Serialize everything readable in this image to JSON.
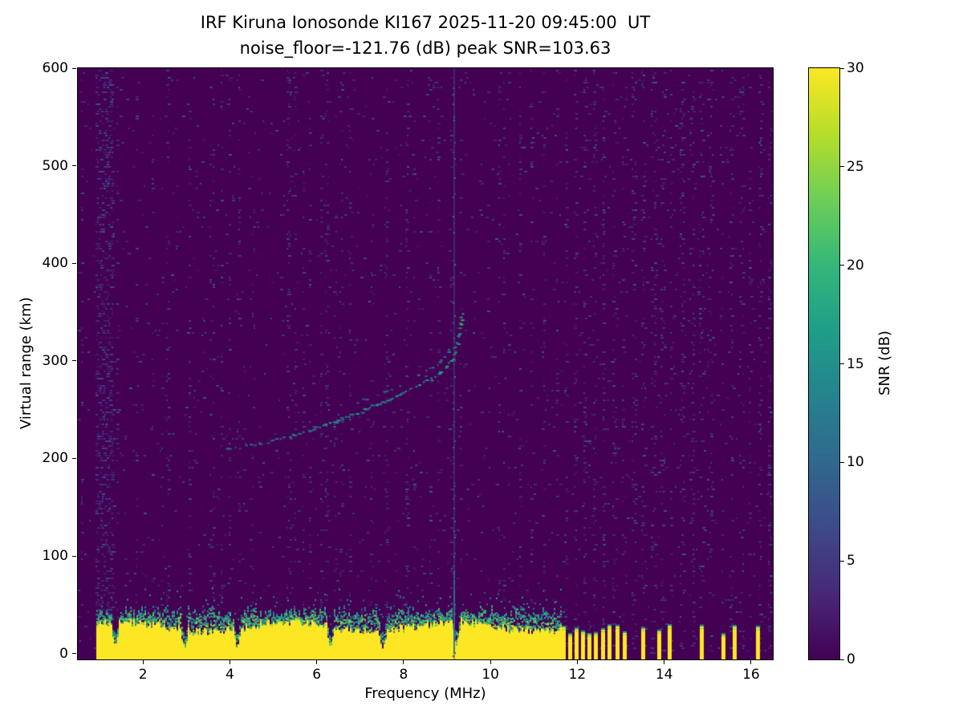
{
  "chart_data": {
    "type": "heatmap",
    "title": "IRF Kiruna Ionosonde KI167 2025-11-20 09:45:00  UT",
    "subtitle": "noise_floor=-121.76 (dB) peak SNR=103.63",
    "xlabel": "Frequency (MHz)",
    "ylabel": "Virtual range (km)",
    "xlim": [
      0.5,
      16.5
    ],
    "ylim": [
      -6,
      600
    ],
    "xticks": [
      2,
      4,
      6,
      8,
      10,
      12,
      14,
      16
    ],
    "yticks": [
      0,
      100,
      200,
      300,
      400,
      500,
      600
    ],
    "grid": false,
    "legend": "none",
    "colorbar": {
      "label": "SNR (dB)",
      "min": 0,
      "max": 30,
      "ticks": [
        0,
        5,
        10,
        15,
        20,
        25,
        30
      ],
      "position": "right",
      "viridis_stops": [
        "#440154",
        "#482878",
        "#3e4a89",
        "#31688e",
        "#26828e",
        "#1f9e89",
        "#35b779",
        "#6ece58",
        "#b5de2b",
        "#fde725"
      ]
    },
    "background_color": "#440154",
    "ground_clutter_band": {
      "freq_start_mhz": 0.92,
      "freq_end_mhz": 11.62,
      "solid_top_km": 28,
      "fringe_top_km": 46,
      "notch_freqs_mhz": [
        1.35,
        2.95,
        4.15,
        6.3,
        7.5,
        9.2
      ],
      "comb_bar_freqs_mhz": [
        11.68,
        11.82,
        11.97,
        12.12,
        12.27,
        12.42,
        12.58,
        12.74,
        12.92,
        13.08,
        13.5,
        13.88,
        14.12,
        14.85,
        15.35,
        15.62,
        16.15
      ],
      "comb_bar_height_km": 24
    },
    "echo_traces": {
      "main_trace_mhz_km": [
        [
          3.9,
          210
        ],
        [
          4.3,
          212
        ],
        [
          4.8,
          217
        ],
        [
          5.3,
          223
        ],
        [
          5.8,
          229
        ],
        [
          6.3,
          237
        ],
        [
          6.8,
          245
        ],
        [
          7.3,
          255
        ],
        [
          7.8,
          264
        ],
        [
          8.2,
          272
        ],
        [
          8.6,
          282
        ],
        [
          8.9,
          292
        ],
        [
          9.1,
          302
        ],
        [
          9.2,
          315
        ],
        [
          9.28,
          332
        ],
        [
          9.32,
          350
        ]
      ],
      "second_trace_mhz_km": [
        [
          6.9,
          258
        ],
        [
          7.4,
          266
        ],
        [
          7.9,
          276
        ],
        [
          8.3,
          285
        ],
        [
          8.7,
          296
        ],
        [
          8.95,
          306
        ],
        [
          9.1,
          318
        ]
      ],
      "snr_db_range": [
        10,
        18
      ]
    },
    "interference_lines_mhz": [
      9.15
    ],
    "noise": {
      "speckle_snr_db_range": [
        2,
        9
      ],
      "dense_column_mhz_range": [
        0.9,
        1.3
      ],
      "streak_freqs_mhz": [
        4.5,
        6.4,
        7.25,
        7.55,
        8.05
      ],
      "striped_region_start_mhz": 11.5
    }
  }
}
